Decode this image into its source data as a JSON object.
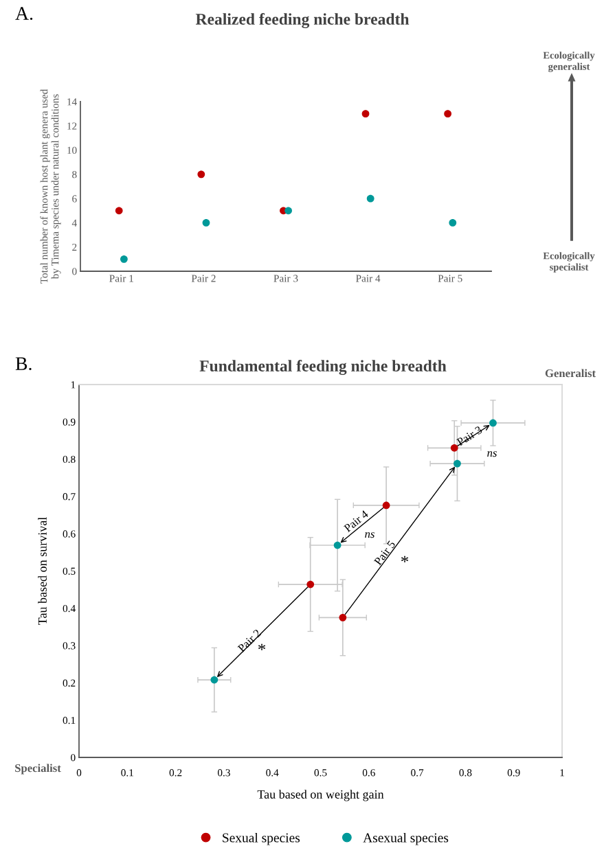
{
  "chart_data": [
    {
      "type": "scatter",
      "title": "Realized feeding niche breadth",
      "ylabel": "Total number of known host plant genera used by Timema species under natural conditions",
      "categories": [
        "Pair 1",
        "Pair 2",
        "Pair 3",
        "Pair 4",
        "Pair 5"
      ],
      "series": [
        {
          "color": "#c00000",
          "values": [
            5,
            8,
            5,
            13,
            13
          ]
        },
        {
          "color": "#009999",
          "values": [
            1,
            4,
            5,
            6,
            4
          ]
        }
      ],
      "ylim": [
        0,
        14
      ],
      "yticks": [
        0,
        2,
        4,
        6,
        8,
        10,
        12,
        14
      ],
      "grid": false,
      "legend": false,
      "marker": "circle",
      "annotations": [
        "A.",
        "Ecologically generalist",
        "Ecologically specialist"
      ]
    },
    {
      "type": "scatter",
      "title": "Fundamental feeding niche breadth",
      "xlabel": "Tau based on weight gain",
      "ylabel": "Tau based on survival",
      "series": [
        {
          "name": "Sexual species",
          "color": "#c00000",
          "x": [
            0.479,
            0.777,
            0.636,
            0.546
          ],
          "values": [
            0.464,
            0.83,
            0.676,
            0.375
          ],
          "xerrors": [
            0.066,
            0.055,
            0.068,
            0.049
          ],
          "errors": [
            0.126,
            0.073,
            0.103,
            0.102
          ]
        },
        {
          "name": "Asexual species",
          "color": "#009999",
          "x": [
            0.28,
            0.857,
            0.535,
            0.783
          ],
          "values": [
            0.208,
            0.897,
            0.569,
            0.788
          ],
          "xerrors": [
            0.034,
            0.066,
            0.057,
            0.056
          ],
          "errors": [
            0.086,
            0.061,
            0.123,
            0.1
          ]
        }
      ],
      "xlim": [
        0,
        1
      ],
      "xticks": [
        0,
        0.1,
        0.2,
        0.3,
        0.4,
        0.5,
        0.6,
        0.7,
        0.8,
        0.9,
        1
      ],
      "ylim": [
        0,
        1
      ],
      "yticks": [
        0,
        0.1,
        0.2,
        0.3,
        0.4,
        0.5,
        0.6,
        0.7,
        0.8,
        0.9,
        1
      ],
      "grid": false,
      "legend": "bottom",
      "marker": "circle",
      "annotations": [
        "B.",
        "Generalist",
        "Specialist",
        "Pair 2",
        "*",
        "Pair 3",
        "ns",
        {
          "text": "Pair 4",
          "x": 0.535,
          "y": 0.569
        },
        "ns",
        "Pair 5",
        "*"
      ]
    }
  ]
}
